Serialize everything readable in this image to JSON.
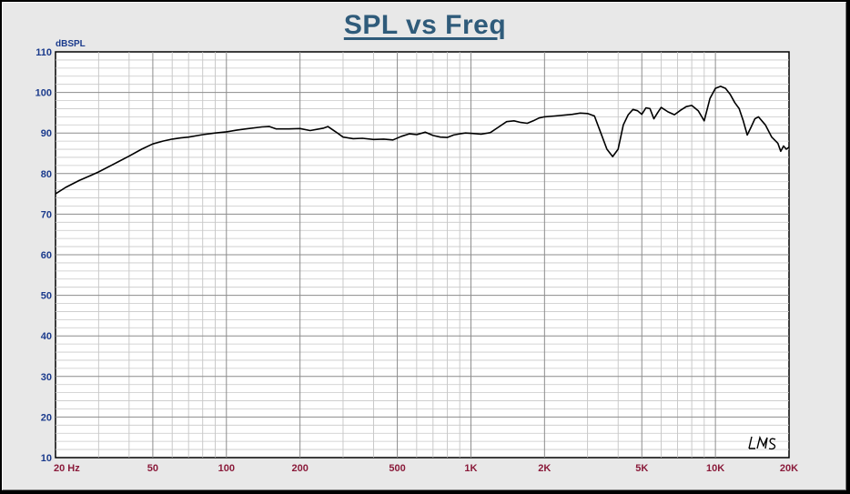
{
  "chart_data": {
    "type": "line",
    "title": "SPL vs Freq",
    "ylabel": "dBSPL",
    "xlabel": "",
    "x_scale": "log",
    "xlim": [
      20,
      20000
    ],
    "ylim": [
      10,
      110
    ],
    "grid": true,
    "yticks": [
      {
        "value": 110,
        "label": "110"
      },
      {
        "value": 100,
        "label": "100"
      },
      {
        "value": 90,
        "label": "90"
      },
      {
        "value": 80,
        "label": "80"
      },
      {
        "value": 70,
        "label": "70"
      },
      {
        "value": 60,
        "label": "60"
      },
      {
        "value": 50,
        "label": "50"
      },
      {
        "value": 40,
        "label": "40"
      },
      {
        "value": 30,
        "label": "30"
      },
      {
        "value": 20,
        "label": "20"
      },
      {
        "value": 10,
        "label": "10"
      }
    ],
    "xticks": [
      {
        "value": 20,
        "label": "20  Hz"
      },
      {
        "value": 50,
        "label": "50"
      },
      {
        "value": 100,
        "label": "100"
      },
      {
        "value": 200,
        "label": "200"
      },
      {
        "value": 500,
        "label": "500"
      },
      {
        "value": 1000,
        "label": "1K"
      },
      {
        "value": 2000,
        "label": "2K"
      },
      {
        "value": 5000,
        "label": "5K"
      },
      {
        "value": 10000,
        "label": "10K"
      },
      {
        "value": 20000,
        "label": "20K"
      }
    ],
    "series": [
      {
        "color": "#000000",
        "points": [
          [
            20,
            75.0
          ],
          [
            22,
            76.6
          ],
          [
            25,
            78.3
          ],
          [
            28,
            79.6
          ],
          [
            30,
            80.4
          ],
          [
            35,
            82.5
          ],
          [
            40,
            84.3
          ],
          [
            45,
            86.0
          ],
          [
            50,
            87.3
          ],
          [
            55,
            88.0
          ],
          [
            60,
            88.5
          ],
          [
            65,
            88.8
          ],
          [
            70,
            89.0
          ],
          [
            80,
            89.6
          ],
          [
            90,
            90.0
          ],
          [
            100,
            90.3
          ],
          [
            110,
            90.7
          ],
          [
            120,
            91.0
          ],
          [
            140,
            91.5
          ],
          [
            150,
            91.6
          ],
          [
            160,
            91.0
          ],
          [
            180,
            91.0
          ],
          [
            200,
            91.1
          ],
          [
            220,
            90.6
          ],
          [
            240,
            91.0
          ],
          [
            250,
            91.2
          ],
          [
            260,
            91.6
          ],
          [
            280,
            90.3
          ],
          [
            300,
            89.0
          ],
          [
            330,
            88.6
          ],
          [
            360,
            88.7
          ],
          [
            400,
            88.4
          ],
          [
            440,
            88.5
          ],
          [
            480,
            88.3
          ],
          [
            520,
            89.2
          ],
          [
            560,
            89.8
          ],
          [
            600,
            89.6
          ],
          [
            650,
            90.2
          ],
          [
            700,
            89.4
          ],
          [
            750,
            89.0
          ],
          [
            800,
            88.9
          ],
          [
            850,
            89.5
          ],
          [
            900,
            89.8
          ],
          [
            950,
            90.0
          ],
          [
            1000,
            89.9
          ],
          [
            1100,
            89.7
          ],
          [
            1200,
            90.1
          ],
          [
            1300,
            91.5
          ],
          [
            1400,
            92.8
          ],
          [
            1500,
            93.0
          ],
          [
            1600,
            92.6
          ],
          [
            1700,
            92.4
          ],
          [
            1800,
            93.0
          ],
          [
            1900,
            93.7
          ],
          [
            2000,
            94.0
          ],
          [
            2200,
            94.2
          ],
          [
            2400,
            94.4
          ],
          [
            2600,
            94.6
          ],
          [
            2800,
            94.9
          ],
          [
            3000,
            94.8
          ],
          [
            3200,
            94.2
          ],
          [
            3400,
            90.0
          ],
          [
            3600,
            86.0
          ],
          [
            3800,
            84.2
          ],
          [
            4000,
            86.0
          ],
          [
            4200,
            92.0
          ],
          [
            4400,
            94.5
          ],
          [
            4600,
            95.8
          ],
          [
            4800,
            95.5
          ],
          [
            5000,
            94.6
          ],
          [
            5200,
            96.2
          ],
          [
            5400,
            96.0
          ],
          [
            5600,
            93.5
          ],
          [
            5800,
            95.0
          ],
          [
            6000,
            96.3
          ],
          [
            6400,
            95.2
          ],
          [
            6800,
            94.5
          ],
          [
            7200,
            95.6
          ],
          [
            7600,
            96.5
          ],
          [
            8000,
            96.8
          ],
          [
            8500,
            95.5
          ],
          [
            9000,
            93.0
          ],
          [
            9500,
            98.5
          ],
          [
            10000,
            101.0
          ],
          [
            10500,
            101.5
          ],
          [
            11000,
            101.0
          ],
          [
            11500,
            99.5
          ],
          [
            12000,
            97.5
          ],
          [
            12500,
            96.0
          ],
          [
            13000,
            93.0
          ],
          [
            13500,
            89.5
          ],
          [
            14000,
            91.5
          ],
          [
            14500,
            93.5
          ],
          [
            15000,
            94.0
          ],
          [
            16000,
            92.0
          ],
          [
            17000,
            89.0
          ],
          [
            18000,
            87.5
          ],
          [
            18500,
            85.5
          ],
          [
            19000,
            86.8
          ],
          [
            19500,
            86.0
          ],
          [
            20000,
            86.5
          ]
        ]
      }
    ]
  },
  "signature_text": "LMS"
}
